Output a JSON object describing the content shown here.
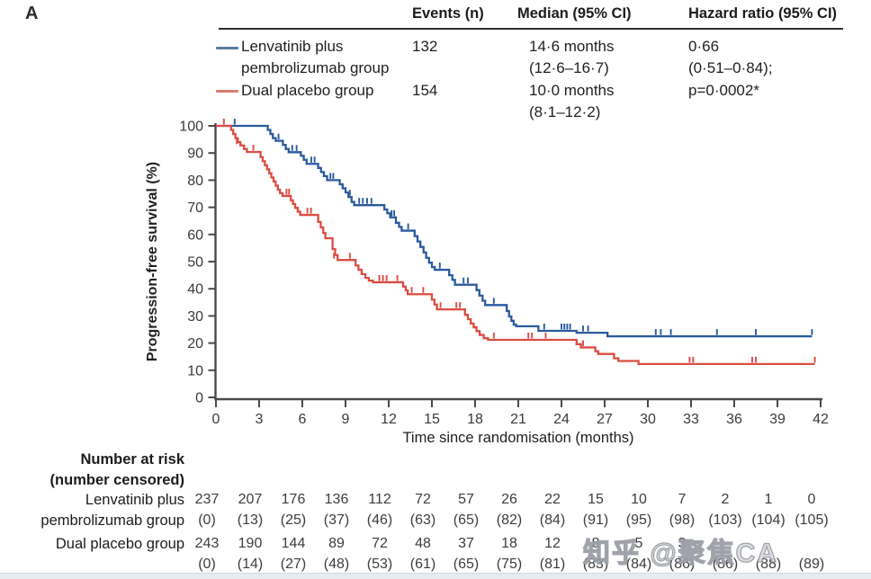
{
  "panel_label": "A",
  "summary_table": {
    "columns": [
      "Events (n)",
      "Median (95% CI)",
      "Hazard ratio (95% CI)"
    ],
    "rows": [
      {
        "group_line1": "Lenvatinib plus",
        "group_line2": "pembrolizumab group",
        "swatch_color": "#5a7da3",
        "events": "132",
        "median_line1": "14·6 months",
        "median_line2": "(12·6–16·7)",
        "hazard_line1": "0·66",
        "hazard_line2": "(0·51–0·84);"
      },
      {
        "group_line1": "Dual placebo group",
        "group_line2": "",
        "swatch_color": "#dd7b71",
        "events": "154",
        "median_line1": "10·0 months",
        "median_line2": "(8·1–12·2)",
        "hazard_line1": "p=0·0002*",
        "hazard_line2": ""
      }
    ]
  },
  "chart_data": {
    "type": "line",
    "subtype": "kaplan-meier-step",
    "title": "",
    "xlabel": "Time since randomisation (months)",
    "ylabel": "Progression-free survival (%)",
    "xlim": [
      0,
      42
    ],
    "ylim": [
      0,
      100
    ],
    "xticks": [
      0,
      3,
      6,
      9,
      12,
      15,
      18,
      21,
      24,
      27,
      30,
      33,
      36,
      39,
      42
    ],
    "yticks": [
      0,
      10,
      20,
      30,
      40,
      50,
      60,
      70,
      80,
      90,
      100
    ],
    "grid": false,
    "legend_position": "top-left-table",
    "axis_color": "#4a4a4a",
    "tick_text_color": "#3a3a3a",
    "series": [
      {
        "name": "Lenvatinib plus pembrolizumab group",
        "color": "#2a5a9c",
        "median_months": 14.6,
        "steps": [
          [
            0,
            100
          ],
          [
            3.6,
            98.5
          ],
          [
            3.78,
            97
          ],
          [
            3.95,
            95.5
          ],
          [
            4.15,
            94.5
          ],
          [
            4.65,
            93
          ],
          [
            4.85,
            91.5
          ],
          [
            5.05,
            90.3
          ],
          [
            5.9,
            89
          ],
          [
            6.1,
            87.5
          ],
          [
            6.3,
            86
          ],
          [
            7.1,
            84.5
          ],
          [
            7.3,
            83
          ],
          [
            7.5,
            81.5
          ],
          [
            7.72,
            80
          ],
          [
            8.6,
            78.5
          ],
          [
            8.8,
            77
          ],
          [
            9.0,
            75.5
          ],
          [
            9.2,
            73.8
          ],
          [
            9.42,
            72
          ],
          [
            9.6,
            70.8
          ],
          [
            11.7,
            69.2
          ],
          [
            11.9,
            67.8
          ],
          [
            12.1,
            66.3
          ],
          [
            12.5,
            64.3
          ],
          [
            12.72,
            62.8
          ],
          [
            12.9,
            61.4
          ],
          [
            13.8,
            59.4
          ],
          [
            14.0,
            57.4
          ],
          [
            14.2,
            55.4
          ],
          [
            14.42,
            53.4
          ],
          [
            14.6,
            51.4
          ],
          [
            14.8,
            49.6
          ],
          [
            15.0,
            48
          ],
          [
            15.2,
            47
          ],
          [
            16.2,
            45
          ],
          [
            16.42,
            43.3
          ],
          [
            16.6,
            41.5
          ],
          [
            18.1,
            39.5
          ],
          [
            18.3,
            37.5
          ],
          [
            18.52,
            35.6
          ],
          [
            18.7,
            34
          ],
          [
            20.2,
            31.8
          ],
          [
            20.36,
            29.8
          ],
          [
            20.52,
            28.2
          ],
          [
            20.68,
            26.8
          ],
          [
            20.85,
            26.2
          ],
          [
            22.4,
            24.5
          ],
          [
            25.05,
            23.8
          ],
          [
            27.2,
            22.5
          ],
          [
            41.4,
            22.5
          ]
        ],
        "censor_ticks": [
          [
            1.3,
            100
          ],
          [
            4.35,
            94.5
          ],
          [
            5.3,
            90.3
          ],
          [
            5.6,
            90.3
          ],
          [
            6.62,
            86
          ],
          [
            6.85,
            86
          ],
          [
            7.95,
            80
          ],
          [
            8.15,
            80
          ],
          [
            9.3,
            73.8
          ],
          [
            9.95,
            70.8
          ],
          [
            10.2,
            70.8
          ],
          [
            10.5,
            70.8
          ],
          [
            10.8,
            70.8
          ],
          [
            12.2,
            66.3
          ],
          [
            12.38,
            66.3
          ],
          [
            13.35,
            61.4
          ],
          [
            15.55,
            47
          ],
          [
            17.2,
            41.5
          ],
          [
            17.5,
            41.5
          ],
          [
            19.3,
            34
          ],
          [
            22.8,
            24.5
          ],
          [
            24.0,
            24.5
          ],
          [
            24.2,
            24.5
          ],
          [
            24.4,
            24.5
          ],
          [
            24.6,
            24.5
          ],
          [
            25.5,
            23.8
          ],
          [
            25.85,
            23.8
          ],
          [
            30.55,
            22.5
          ],
          [
            30.9,
            22.5
          ],
          [
            31.6,
            22.5
          ],
          [
            34.8,
            22.5
          ],
          [
            37.5,
            22.5
          ],
          [
            41.4,
            22.5
          ]
        ]
      },
      {
        "name": "Dual placebo group",
        "color": "#da4d42",
        "median_months": 10.0,
        "steps": [
          [
            0,
            100
          ],
          [
            1.05,
            98.5
          ],
          [
            1.2,
            97
          ],
          [
            1.35,
            95.5
          ],
          [
            1.52,
            94
          ],
          [
            1.7,
            92.8
          ],
          [
            1.95,
            91.5
          ],
          [
            2.15,
            90.4
          ],
          [
            3.1,
            88.5
          ],
          [
            3.25,
            87
          ],
          [
            3.4,
            85.5
          ],
          [
            3.55,
            84
          ],
          [
            3.7,
            82.5
          ],
          [
            3.85,
            81
          ],
          [
            4.0,
            79.5
          ],
          [
            4.15,
            78
          ],
          [
            4.3,
            76.5
          ],
          [
            4.45,
            75.2
          ],
          [
            4.62,
            74.2
          ],
          [
            5.2,
            72.6
          ],
          [
            5.35,
            71.2
          ],
          [
            5.5,
            69.8
          ],
          [
            5.68,
            68.4
          ],
          [
            5.85,
            67.2
          ],
          [
            7.1,
            64.6
          ],
          [
            7.28,
            62.6
          ],
          [
            7.45,
            60.6
          ],
          [
            7.6,
            58.6
          ],
          [
            8.1,
            54.6
          ],
          [
            8.28,
            52.4
          ],
          [
            8.45,
            50.6
          ],
          [
            9.7,
            48.6
          ],
          [
            9.9,
            47
          ],
          [
            10.12,
            45.4
          ],
          [
            10.38,
            44
          ],
          [
            10.62,
            43
          ],
          [
            10.9,
            42.4
          ],
          [
            13.0,
            40.8
          ],
          [
            13.18,
            39.4
          ],
          [
            13.32,
            38
          ],
          [
            15.0,
            36
          ],
          [
            15.18,
            34.2
          ],
          [
            15.35,
            32.4
          ],
          [
            17.3,
            30.4
          ],
          [
            17.5,
            28.8
          ],
          [
            17.7,
            27.2
          ],
          [
            17.9,
            25.8
          ],
          [
            18.1,
            24.4
          ],
          [
            18.32,
            23
          ],
          [
            18.6,
            21.8
          ],
          [
            18.9,
            21.2
          ],
          [
            25.05,
            19.6
          ],
          [
            25.35,
            18.4
          ],
          [
            26.35,
            17
          ],
          [
            26.55,
            16
          ],
          [
            27.65,
            14.4
          ],
          [
            27.95,
            13.4
          ],
          [
            29.35,
            12.3
          ],
          [
            41.6,
            12.3
          ]
        ],
        "censor_ticks": [
          [
            0.55,
            100
          ],
          [
            1.45,
            92.8
          ],
          [
            2.6,
            90.4
          ],
          [
            4.9,
            74.2
          ],
          [
            5.08,
            74.2
          ],
          [
            6.35,
            67.2
          ],
          [
            6.6,
            67.2
          ],
          [
            8.2,
            50.6
          ],
          [
            9.3,
            50.6
          ],
          [
            11.35,
            42.4
          ],
          [
            11.6,
            42.4
          ],
          [
            11.85,
            42.4
          ],
          [
            12.6,
            42.4
          ],
          [
            13.6,
            38
          ],
          [
            14.4,
            38
          ],
          [
            15.6,
            32.4
          ],
          [
            16.7,
            32.4
          ],
          [
            16.95,
            32.4
          ],
          [
            19.3,
            21.2
          ],
          [
            21.7,
            21.2
          ],
          [
            21.95,
            21.2
          ],
          [
            22.9,
            21.2
          ],
          [
            25.5,
            18.4
          ],
          [
            32.9,
            12.3
          ],
          [
            33.15,
            12.3
          ],
          [
            37.25,
            12.3
          ],
          [
            37.5,
            12.3
          ],
          [
            41.6,
            12.3
          ]
        ]
      }
    ]
  },
  "number_at_risk": {
    "header_line1": "Number at risk",
    "header_line2": "(number censored)",
    "rows": [
      {
        "label_line1": "Lenvatinib plus",
        "label_line2": "pembrolizumab group",
        "counts": [
          "237",
          "207",
          "176",
          "136",
          "112",
          "72",
          "57",
          "26",
          "22",
          "15",
          "10",
          "7",
          "2",
          "1",
          "0"
        ],
        "censored": [
          "(0)",
          "(13)",
          "(25)",
          "(37)",
          "(46)",
          "(63)",
          "(65)",
          "(82)",
          "(84)",
          "(91)",
          "(95)",
          "(98)",
          "(103)",
          "(104)",
          "(105)"
        ]
      },
      {
        "label_line1": "Dual placebo group",
        "label_line2": "",
        "counts": [
          "243",
          "190",
          "144",
          "89",
          "72",
          "48",
          "37",
          "18",
          "12",
          "8",
          "5",
          "3",
          "",
          "",
          ""
        ],
        "censored": [
          "(0)",
          "(14)",
          "(27)",
          "(48)",
          "(53)",
          "(61)",
          "(65)",
          "(75)",
          "(81)",
          "(83)",
          "(84)",
          "(86)",
          "(86)",
          "(88)",
          "(89)"
        ]
      }
    ]
  },
  "watermark": "知乎 @聚焦CA"
}
